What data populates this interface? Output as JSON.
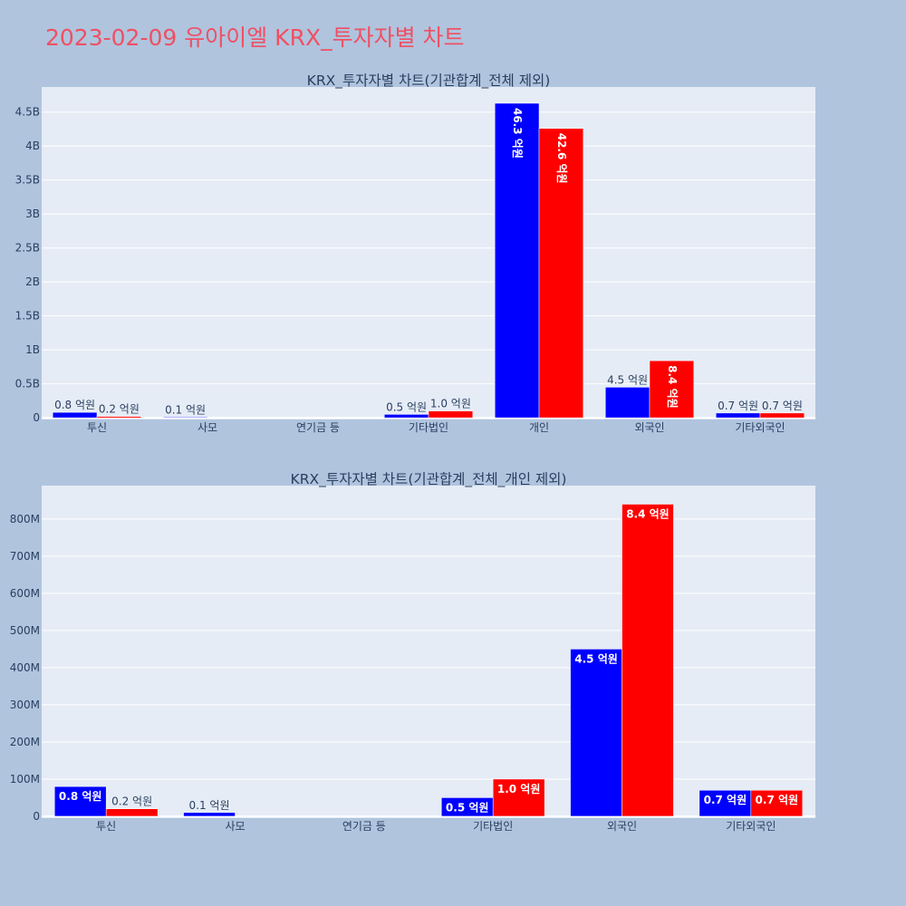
{
  "page_title": "2023-02-09 유아이엘 KRX_투자자별 차트",
  "colors": {
    "buy": "#0000ff",
    "sell": "#ff0000",
    "plot_bg": "#e5ecf6",
    "page_bg": "#b0c4de",
    "title": "#ef5063",
    "text": "#2a3f5f"
  },
  "chart_data": [
    {
      "type": "bar",
      "title": "KRX_투자자별 차트(기관합계_전체 제외)",
      "categories": [
        "투신",
        "사모",
        "연기금 등",
        "기타법인",
        "개인",
        "외국인",
        "기타외국인"
      ],
      "series": [
        {
          "color": "#0000ff",
          "values": [
            80000000,
            10000000,
            0,
            50000000,
            4630000000,
            450000000,
            70000000
          ],
          "labels": [
            "0.8 억원",
            "0.1 억원",
            "",
            "0.5 억원",
            "46.3 억원",
            "4.5 억원",
            "0.7 억원"
          ]
        },
        {
          "color": "#ff0000",
          "values": [
            20000000,
            0,
            0,
            100000000,
            4260000000,
            840000000,
            70000000
          ],
          "labels": [
            "0.2 억원",
            "",
            "",
            "1.0 억원",
            "42.6 억원",
            "8.4 억원",
            "0.7 억원"
          ]
        }
      ],
      "yticks": [
        {
          "v": 0,
          "t": "0"
        },
        {
          "v": 500000000,
          "t": "0.5B"
        },
        {
          "v": 1000000000,
          "t": "1B"
        },
        {
          "v": 1500000000,
          "t": "1.5B"
        },
        {
          "v": 2000000000,
          "t": "2B"
        },
        {
          "v": 2500000000,
          "t": "2.5B"
        },
        {
          "v": 3000000000,
          "t": "3B"
        },
        {
          "v": 3500000000,
          "t": "3.5B"
        },
        {
          "v": 4000000000,
          "t": "4B"
        },
        {
          "v": 4500000000,
          "t": "4.5B"
        }
      ],
      "ylim": [
        -25000000,
        4870000000
      ],
      "grid": true
    },
    {
      "type": "bar",
      "title": "KRX_투자자별 차트(기관합계_전체_개인 제외)",
      "categories": [
        "투신",
        "사모",
        "연기금 등",
        "기타법인",
        "외국인",
        "기타외국인"
      ],
      "series": [
        {
          "color": "#0000ff",
          "values": [
            80000000,
            10000000,
            0,
            50000000,
            450000000,
            70000000
          ],
          "labels": [
            "0.8 억원",
            "0.1 억원",
            "",
            "0.5 억원",
            "4.5 억원",
            "0.7 억원"
          ]
        },
        {
          "color": "#ff0000",
          "values": [
            20000000,
            0,
            0,
            100000000,
            840000000,
            70000000
          ],
          "labels": [
            "0.2 억원",
            "",
            "",
            "1.0 억원",
            "8.4 억원",
            "0.7 억원"
          ]
        }
      ],
      "yticks": [
        {
          "v": 0,
          "t": "0"
        },
        {
          "v": 100000000,
          "t": "100M"
        },
        {
          "v": 200000000,
          "t": "200M"
        },
        {
          "v": 300000000,
          "t": "300M"
        },
        {
          "v": 400000000,
          "t": "400M"
        },
        {
          "v": 500000000,
          "t": "500M"
        },
        {
          "v": 600000000,
          "t": "600M"
        },
        {
          "v": 700000000,
          "t": "700M"
        },
        {
          "v": 800000000,
          "t": "800M"
        }
      ],
      "ylim": [
        -5000000,
        890000000
      ],
      "grid": true
    }
  ]
}
